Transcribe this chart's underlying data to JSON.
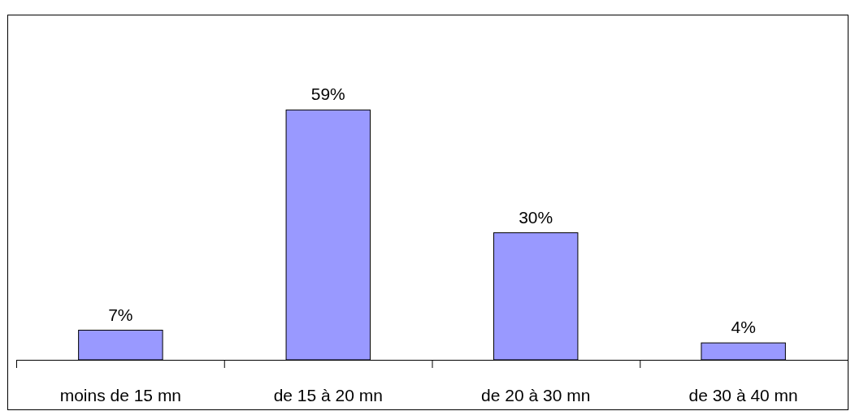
{
  "chart_data": {
    "type": "bar",
    "categories": [
      "moins de 15 mn",
      "de 15 à 20 mn",
      "de 20 à 30 mn",
      "de 30 à 40 mn"
    ],
    "values": [
      7,
      59,
      30,
      4
    ],
    "color": "#9999ff",
    "value_labels": [
      "7%",
      "59%",
      "30%",
      "4%"
    ]
  }
}
